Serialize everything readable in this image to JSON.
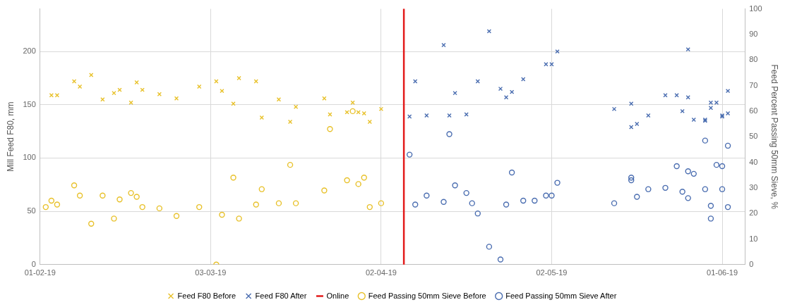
{
  "chart_data": {
    "type": "scatter",
    "ylabel": "Mill Feed F80, mm",
    "y2label": "Feed Percent Passing 50mm Sieve, %",
    "xlim": [
      "2019-02-01",
      "2019-06-05"
    ],
    "xticks": [
      {
        "value": "2019-02-01",
        "label": "01-02-19"
      },
      {
        "value": "2019-03-03",
        "label": "03-03-19"
      },
      {
        "value": "2019-04-02",
        "label": "02-04-19"
      },
      {
        "value": "2019-05-02",
        "label": "02-05-19"
      },
      {
        "value": "2019-06-01",
        "label": "01-06-19"
      }
    ],
    "ylim": [
      0,
      240
    ],
    "yticks": [
      0,
      50,
      100,
      150,
      200
    ],
    "y2lim": [
      0,
      100
    ],
    "y2ticks": [
      0,
      10,
      20,
      30,
      40,
      50,
      60,
      70,
      80,
      90,
      100
    ],
    "grid": true,
    "legend": "bottom",
    "ref_lines": [
      {
        "axis": "x",
        "value": "2019-04-06",
        "label": "Online",
        "color": "#e31b1b"
      }
    ],
    "series": [
      {
        "name": "Feed F80 Before",
        "color": "#e8c12a",
        "marker": "cross",
        "x": [
          "2019-02-03",
          "2019-02-04",
          "2019-02-07",
          "2019-02-08",
          "2019-02-10",
          "2019-02-12",
          "2019-02-14",
          "2019-02-15",
          "2019-02-17",
          "2019-02-18",
          "2019-02-19",
          "2019-02-22",
          "2019-02-25",
          "2019-03-01",
          "2019-03-04",
          "2019-03-05",
          "2019-03-07",
          "2019-03-08",
          "2019-03-11",
          "2019-03-12",
          "2019-03-15",
          "2019-03-17",
          "2019-03-18",
          "2019-03-23",
          "2019-03-24",
          "2019-03-27",
          "2019-03-28",
          "2019-03-29",
          "2019-03-30",
          "2019-03-31",
          "2019-04-02"
        ],
        "values": [
          159,
          159,
          172,
          167,
          178,
          155,
          161,
          164,
          152,
          171,
          164,
          160,
          156,
          167,
          172,
          163,
          151,
          175,
          172,
          138,
          155,
          134,
          148,
          156,
          141,
          143,
          152,
          143,
          142,
          134,
          146
        ]
      },
      {
        "name": "Feed F80 After",
        "color": "#4a6db0",
        "marker": "cross",
        "x": [
          "2019-04-07",
          "2019-04-08",
          "2019-04-10",
          "2019-04-13",
          "2019-04-14",
          "2019-04-15",
          "2019-04-17",
          "2019-04-19",
          "2019-04-21",
          "2019-04-23",
          "2019-04-24",
          "2019-04-25",
          "2019-04-27",
          "2019-05-01",
          "2019-05-02",
          "2019-05-03",
          "2019-05-13",
          "2019-05-16",
          "2019-05-16",
          "2019-05-17",
          "2019-05-19",
          "2019-05-22",
          "2019-05-24",
          "2019-05-25",
          "2019-05-26",
          "2019-05-26",
          "2019-05-27",
          "2019-05-29",
          "2019-05-29",
          "2019-05-30",
          "2019-05-30",
          "2019-05-31",
          "2019-06-01",
          "2019-06-01",
          "2019-06-02",
          "2019-06-02"
        ],
        "values": [
          139,
          172,
          140,
          206,
          140,
          161,
          141,
          172,
          219,
          165,
          157,
          162,
          174,
          188,
          188,
          200,
          146,
          151,
          129,
          132,
          140,
          159,
          159,
          144,
          202,
          157,
          136,
          136,
          135,
          147,
          152,
          152,
          140,
          139,
          163,
          142
        ]
      },
      {
        "name": "Feed Passing 50mm Sieve Before",
        "color": "#e8c12a",
        "marker": "circle",
        "axis": "y2",
        "x": [
          "2019-02-02",
          "2019-02-03",
          "2019-02-04",
          "2019-02-07",
          "2019-02-08",
          "2019-02-10",
          "2019-02-12",
          "2019-02-14",
          "2019-02-15",
          "2019-02-17",
          "2019-02-18",
          "2019-02-19",
          "2019-02-22",
          "2019-02-25",
          "2019-03-01",
          "2019-03-04",
          "2019-03-05",
          "2019-03-07",
          "2019-03-08",
          "2019-03-11",
          "2019-03-12",
          "2019-03-15",
          "2019-03-17",
          "2019-03-18",
          "2019-03-23",
          "2019-03-24",
          "2019-03-27",
          "2019-03-28",
          "2019-03-29",
          "2019-03-30",
          "2019-03-31",
          "2019-04-02"
        ],
        "values": [
          22.5,
          25,
          23.5,
          31,
          27,
          16,
          27,
          18,
          25.5,
          28,
          26.5,
          22.5,
          22,
          19,
          22.5,
          0,
          19.5,
          34,
          18,
          23.5,
          29.5,
          24,
          39,
          24,
          29,
          53,
          33,
          60,
          31.5,
          34,
          22.5,
          24
        ]
      },
      {
        "name": "Feed Passing 50mm Sieve After",
        "color": "#4a6db0",
        "marker": "circle",
        "axis": "y2",
        "x": [
          "2019-04-07",
          "2019-04-08",
          "2019-04-10",
          "2019-04-13",
          "2019-04-14",
          "2019-04-15",
          "2019-04-17",
          "2019-04-18",
          "2019-04-19",
          "2019-04-21",
          "2019-04-23",
          "2019-04-24",
          "2019-04-25",
          "2019-04-27",
          "2019-04-29",
          "2019-05-01",
          "2019-05-02",
          "2019-05-03",
          "2019-05-13",
          "2019-05-16",
          "2019-05-16",
          "2019-05-17",
          "2019-05-19",
          "2019-05-22",
          "2019-05-24",
          "2019-05-25",
          "2019-05-26",
          "2019-05-26",
          "2019-05-27",
          "2019-05-29",
          "2019-05-29",
          "2019-05-30",
          "2019-05-30",
          "2019-05-31",
          "2019-06-01",
          "2019-06-01",
          "2019-06-02",
          "2019-06-02"
        ],
        "values": [
          43,
          23.5,
          27,
          24.5,
          51,
          31,
          28,
          24,
          20,
          7,
          2,
          23.5,
          36,
          25,
          25,
          27,
          27,
          32,
          24,
          34,
          33,
          26.5,
          29.5,
          30,
          38.5,
          28.5,
          36.5,
          26,
          35.5,
          48.5,
          29.5,
          23,
          18,
          39,
          38.5,
          29.5,
          46.5,
          22.5
        ]
      }
    ]
  }
}
